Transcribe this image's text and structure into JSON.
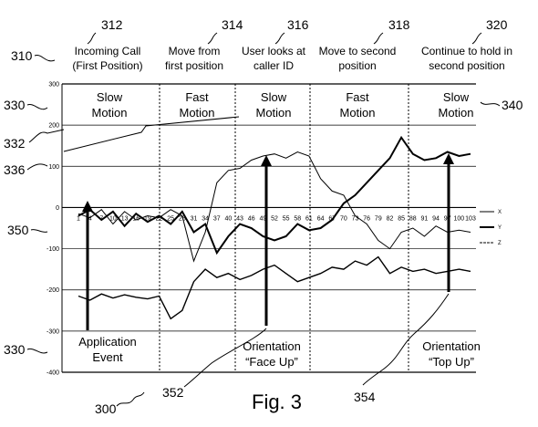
{
  "figure": {
    "number_label": "Fig. 3",
    "ref_figure": "300"
  },
  "header": {
    "ref": "310",
    "columns": [
      {
        "ref": "312",
        "lines": [
          "Incoming Call",
          "(First Position)"
        ]
      },
      {
        "ref": "314",
        "lines": [
          "Move from",
          "first position"
        ]
      },
      {
        "ref": "316",
        "lines": [
          "User looks at",
          "caller ID"
        ]
      },
      {
        "ref": "318",
        "lines": [
          "Move to second",
          "position"
        ]
      },
      {
        "ref": "320",
        "lines": [
          "Continue to hold in",
          "second position"
        ]
      }
    ]
  },
  "phases": {
    "ref_left": "330",
    "ref_right": "340",
    "items": [
      {
        "lines": [
          "Slow",
          "Motion"
        ]
      },
      {
        "lines": [
          "Fast",
          "Motion"
        ]
      },
      {
        "lines": [
          "Slow",
          "Motion"
        ]
      },
      {
        "lines": [
          "Fast",
          "Motion"
        ]
      },
      {
        "lines": [
          "Slow",
          "Motion"
        ]
      }
    ]
  },
  "side_refs": {
    "r332": "332",
    "r336": "336",
    "r350": "350",
    "r330_bottom": "330",
    "r352": "352",
    "r354": "354"
  },
  "annotations": {
    "application_event": [
      "Application",
      "Event"
    ],
    "face_up": [
      "Orientation",
      "“Face Up”"
    ],
    "top_up": [
      "Orientation",
      "“Top Up”"
    ]
  },
  "chart_data": {
    "type": "line",
    "title": "",
    "xlabel": "",
    "ylabel": "",
    "ylim": [
      -400,
      300
    ],
    "yticks": [
      300,
      200,
      100,
      0,
      -100,
      -200,
      -300,
      -400
    ],
    "xticks": [
      "1",
      "4",
      "7",
      "10",
      "13",
      "16",
      "19",
      "22",
      "25",
      "28",
      "31",
      "34",
      "37",
      "40",
      "43",
      "46",
      "49",
      "52",
      "55",
      "58",
      "61",
      "64",
      "67",
      "70",
      "73",
      "76",
      "79",
      "82",
      "85",
      "88",
      "91",
      "94",
      "97",
      "100",
      "103"
    ],
    "legend": [
      "X",
      "Y",
      "Z"
    ],
    "series": [
      {
        "name": "X",
        "x": [
          1,
          4,
          7,
          10,
          13,
          16,
          19,
          22,
          25,
          28,
          31,
          34,
          37,
          40,
          43,
          46,
          49,
          52,
          55,
          58,
          61,
          64,
          67,
          70,
          73,
          76,
          79,
          82,
          85,
          88,
          91,
          94,
          97,
          100,
          103
        ],
        "values": [
          -15,
          -25,
          -5,
          -40,
          -10,
          -30,
          -20,
          -25,
          -5,
          -20,
          -130,
          -60,
          60,
          90,
          95,
          115,
          125,
          130,
          120,
          135,
          125,
          70,
          40,
          30,
          -20,
          -40,
          -80,
          -100,
          -60,
          -50,
          -70,
          -45,
          -60,
          -55,
          -60
        ]
      },
      {
        "name": "Y",
        "x": [
          1,
          4,
          7,
          10,
          13,
          16,
          19,
          22,
          25,
          28,
          31,
          34,
          37,
          40,
          43,
          46,
          49,
          52,
          55,
          58,
          61,
          64,
          67,
          70,
          73,
          76,
          79,
          82,
          85,
          88,
          91,
          94,
          97,
          100,
          103
        ],
        "values": [
          -20,
          -5,
          -30,
          -10,
          -45,
          -15,
          -35,
          -20,
          -40,
          -10,
          -60,
          -40,
          -110,
          -70,
          -40,
          -50,
          -70,
          -80,
          -70,
          -40,
          -55,
          -50,
          -30,
          10,
          30,
          60,
          90,
          120,
          170,
          130,
          115,
          120,
          135,
          125,
          130
        ]
      },
      {
        "name": "Z",
        "x": [
          1,
          4,
          7,
          10,
          13,
          16,
          19,
          22,
          25,
          28,
          31,
          34,
          37,
          40,
          43,
          46,
          49,
          52,
          55,
          58,
          61,
          64,
          67,
          70,
          73,
          76,
          79,
          82,
          85,
          88,
          91,
          94,
          97,
          100,
          103
        ],
        "values": [
          -215,
          -225,
          -210,
          -220,
          -212,
          -218,
          -222,
          -215,
          -270,
          -250,
          -180,
          -150,
          -170,
          -160,
          -175,
          -165,
          -150,
          -140,
          -160,
          -180,
          -170,
          -160,
          -145,
          -150,
          -130,
          -140,
          -120,
          -160,
          -145,
          -155,
          -150,
          -160,
          -155,
          -150,
          -155
        ]
      }
    ]
  }
}
